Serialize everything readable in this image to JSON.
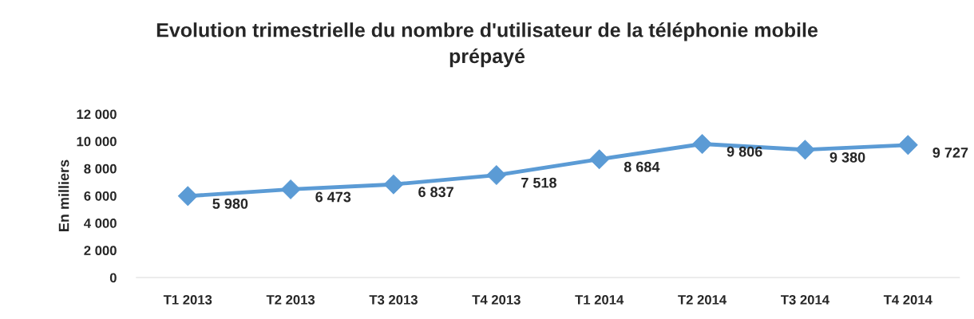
{
  "chart_data": {
    "type": "line",
    "title": "Evolution trimestrielle du nombre d'utilisateur de la téléphonie mobile\nprépayé",
    "ylabel": "En milliers",
    "categories": [
      "T1 2013",
      "T2 2013",
      "T3 2013",
      "T4 2013",
      "T1 2014",
      "T2 2014",
      "T3 2014",
      "T4 2014"
    ],
    "series": [
      {
        "color": "#5b9bd5",
        "values": [
          5980,
          6473,
          6837,
          7518,
          8684,
          9806,
          9380,
          9727
        ],
        "value_labels": [
          "5 980",
          "6 473",
          "6 837",
          "7 518",
          "8 684",
          "9 806",
          "9 380",
          "9 727"
        ]
      }
    ],
    "ylim": [
      0,
      12000
    ],
    "yticks": [
      {
        "value": 0,
        "label": "0"
      },
      {
        "value": 2000,
        "label": "2 000"
      },
      {
        "value": 4000,
        "label": "4 000"
      },
      {
        "value": 6000,
        "label": "6 000"
      },
      {
        "value": 8000,
        "label": "8 000"
      },
      {
        "value": 10000,
        "label": "10 000"
      },
      {
        "value": 12000,
        "label": "12 000"
      }
    ],
    "marker": "diamond",
    "line_style": "solid",
    "grid": false
  }
}
